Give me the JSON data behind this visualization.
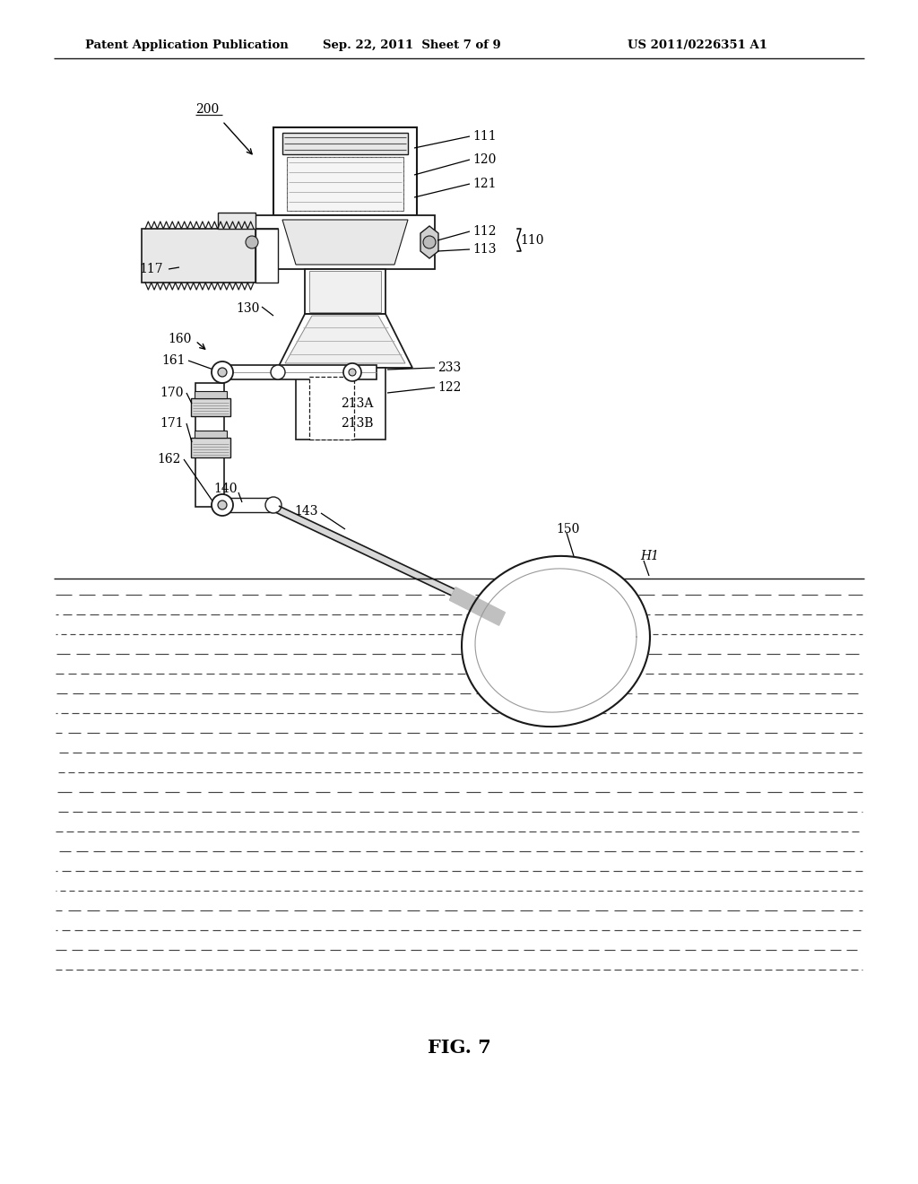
{
  "header_left": "Patent Application Publication",
  "header_center": "Sep. 22, 2011  Sheet 7 of 9",
  "header_right": "US 2011/0226351 A1",
  "fig_label": "FIG. 7",
  "background": "#ffffff",
  "line_color": "#1a1a1a",
  "water_dash_color": "#333333"
}
